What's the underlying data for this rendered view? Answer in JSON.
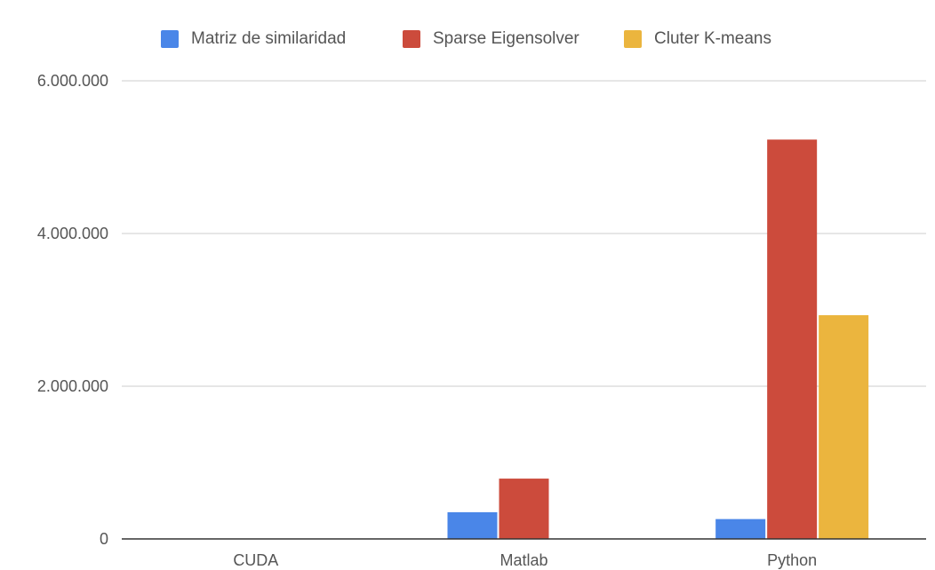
{
  "chart_data": {
    "type": "bar",
    "categories": [
      "CUDA",
      "Matlab",
      "Python"
    ],
    "series": [
      {
        "name": "Matriz de similaridad",
        "color": "#4A86E8",
        "values": [
          0,
          350000,
          260000
        ]
      },
      {
        "name": "Sparse Eigensolver",
        "color": "#CC4B3C",
        "values": [
          0,
          790000,
          5230000
        ]
      },
      {
        "name": "Cluter K-means",
        "color": "#EBB53E",
        "values": [
          0,
          0,
          2930000
        ]
      }
    ],
    "ylim": [
      0,
      6000000
    ],
    "y_ticks": [
      0,
      2000000,
      4000000,
      6000000
    ],
    "y_tick_labels": [
      "0",
      "2.000.000",
      "4.000.000",
      "6.000.000"
    ],
    "grid": true,
    "legend_position": "top"
  }
}
